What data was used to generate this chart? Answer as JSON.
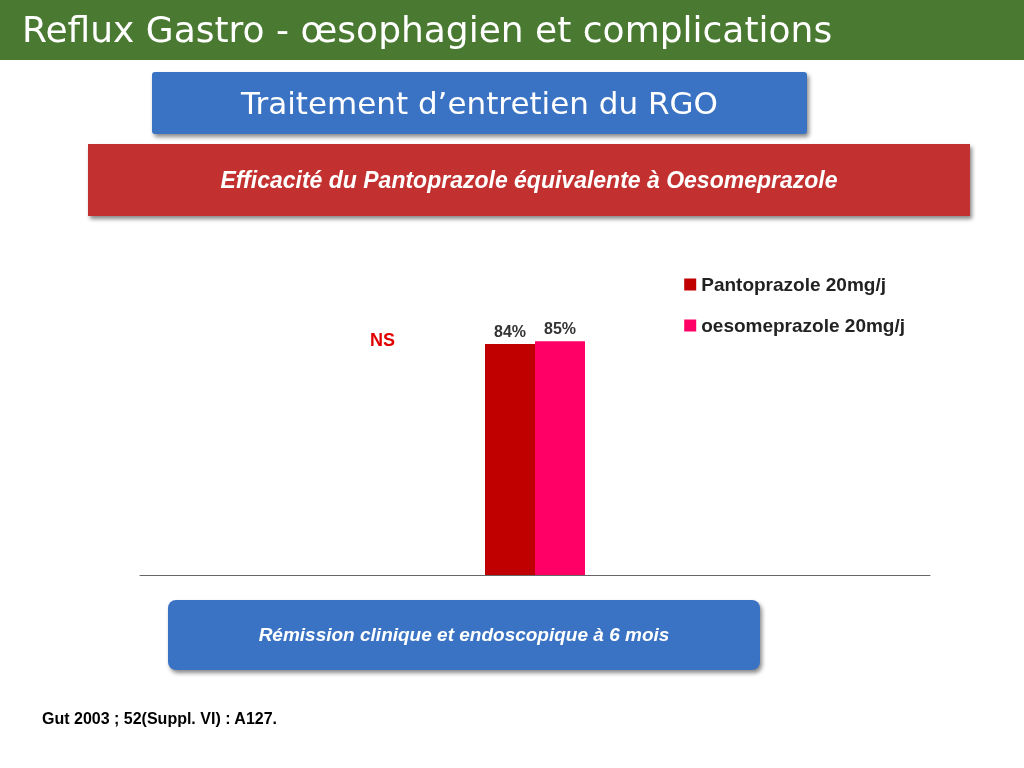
{
  "chart_data": {
    "type": "bar",
    "title": "Reflux Gastro - œsophagien et complications",
    "subtitle": "Traitement d’entretien  du RGO",
    "xlabel": "Rémission clinique et endoscopique  à 6 mois",
    "annotations": [
      "Efficacité du Pantoprazole équivalente à  Oesomeprazole",
      "NS",
      "Gut 2003 ; 52(Suppl. VI) : A127."
    ],
    "categories": [
      null
    ],
    "series": [
      {
        "name": "Pantoprazole 20mg/j",
        "color": "#c00000",
        "values": [
          84
        ],
        "value_labels": [
          "84%"
        ]
      },
      {
        "name": "oesomeprazole 20mg/j",
        "color": "#ff0066",
        "values": [
          85
        ],
        "value_labels": [
          "85%"
        ]
      }
    ],
    "legend": "top right"
  }
}
